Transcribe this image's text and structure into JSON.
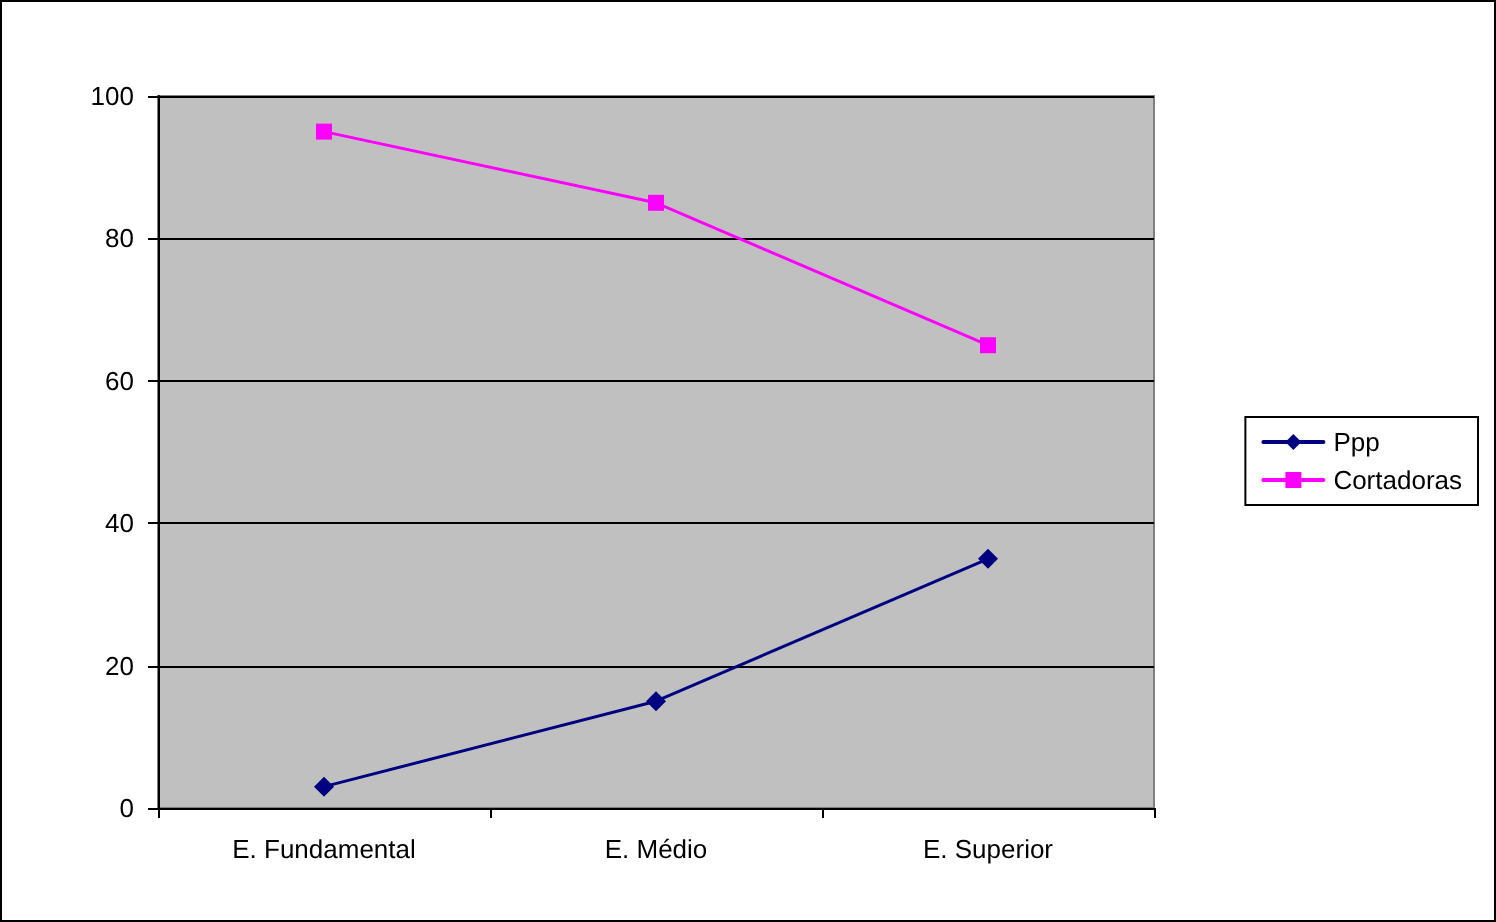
{
  "chart_data": {
    "type": "line",
    "categories": [
      "E. Fundamental",
      "E. Médio",
      "E. Superior"
    ],
    "series": [
      {
        "name": "Ppp",
        "color": "#000080",
        "marker": "diamond",
        "values": [
          3,
          15,
          35
        ]
      },
      {
        "name": "Cortadoras",
        "color": "#ff00ff",
        "marker": "square",
        "values": [
          95,
          85,
          65
        ]
      }
    ],
    "ylim": [
      0,
      100
    ],
    "yticks": [
      0,
      20,
      40,
      60,
      80,
      100
    ],
    "grid": "y",
    "legend": "right",
    "line_style": "solid"
  }
}
